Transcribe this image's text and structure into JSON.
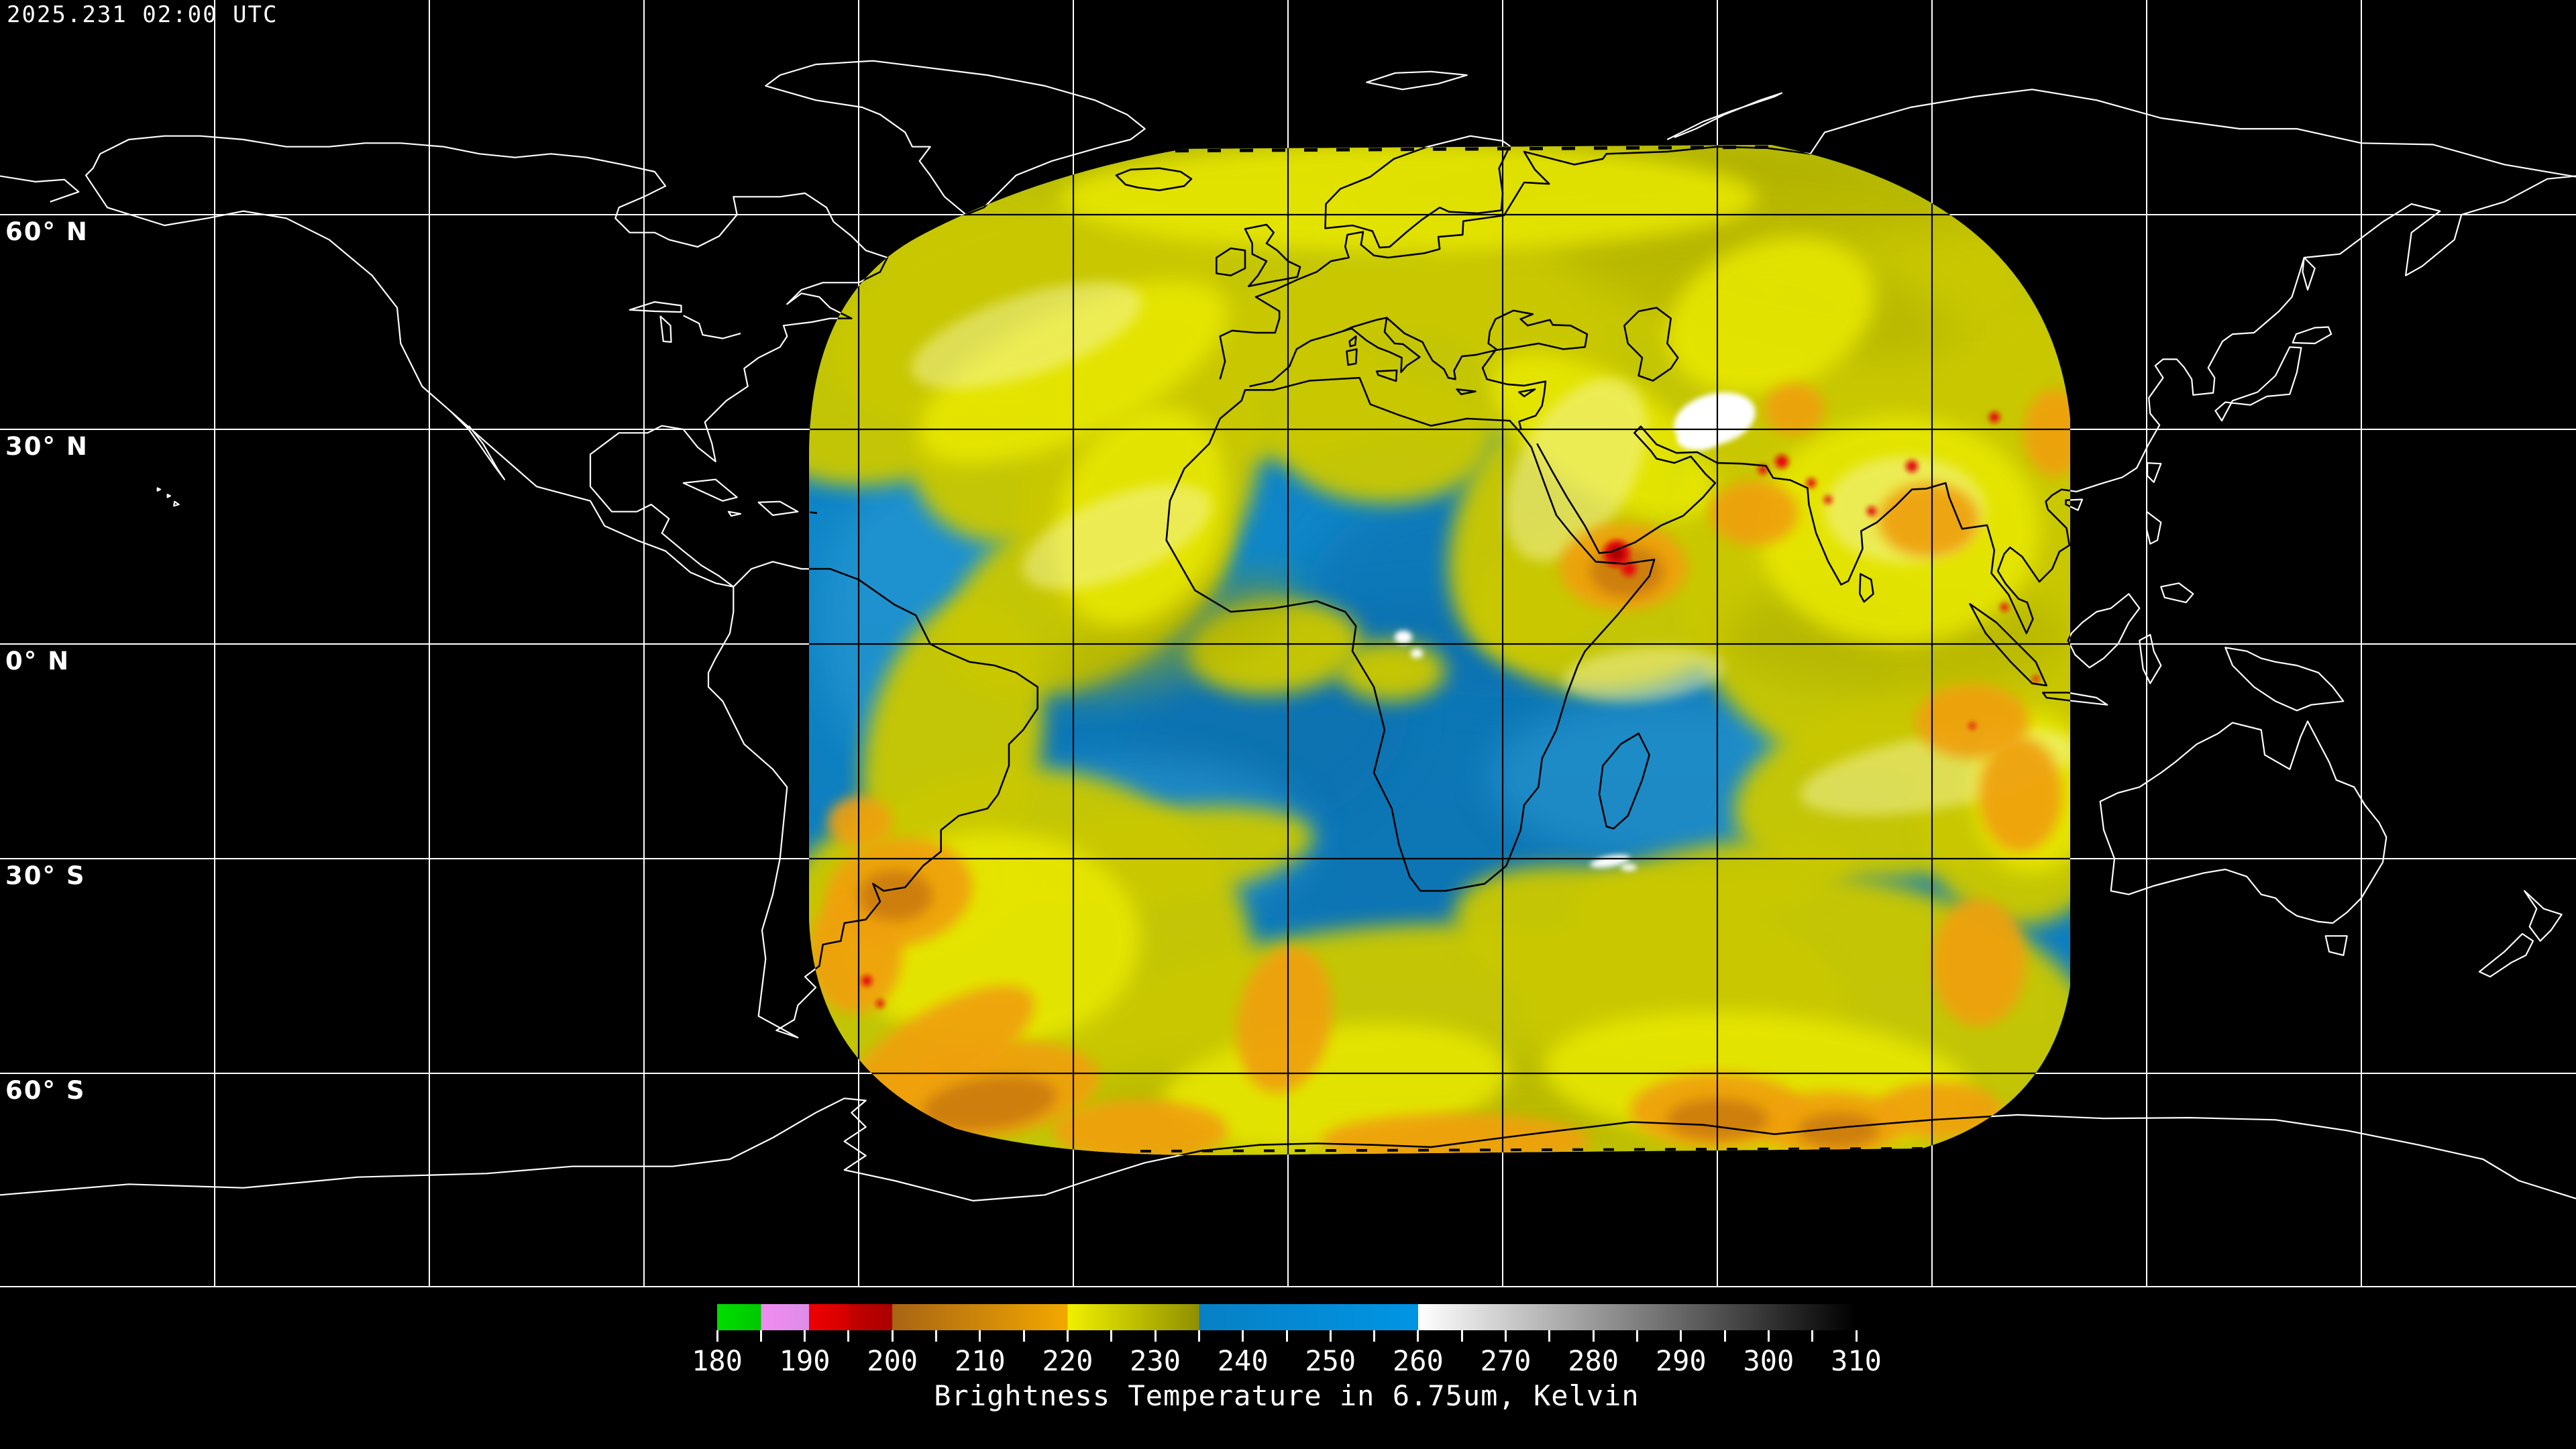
{
  "header": {
    "timestamp": "2025.231 02:00 UTC"
  },
  "map": {
    "projection": "equirectangular",
    "grid_interval_deg": 30,
    "lat_labels": [
      {
        "label": "60° N",
        "lat": 60
      },
      {
        "label": "30° N",
        "lat": 30
      },
      {
        "label": "0° N",
        "lat": 0
      },
      {
        "label": "30° S",
        "lat": -30
      },
      {
        "label": "60° S",
        "lat": -60
      }
    ],
    "colors": {
      "background": "#000000",
      "coastline_outside_swath": "#ffffff",
      "coastline_inside_swath": "#000000",
      "gridline_outside_swath": "#ffffff",
      "gridline_inside_swath": "#000000",
      "swath_ocean_blue": "#0e84c6",
      "swath_cloud_yellow": "#c9c800",
      "swath_cloud_bright_yellow": "#e9e900",
      "swath_cloud_orange": "#efa010",
      "swath_cold_red": "#e30e0e",
      "swath_warm_white": "#ffffff"
    }
  },
  "colorbar": {
    "title": "Brightness Temperature in 6.75um, Kelvin",
    "min": 180,
    "max": 310,
    "major_tick_step": 10,
    "minor_tick_step": 5,
    "major_tick_labels": [
      "180",
      "190",
      "200",
      "210",
      "220",
      "230",
      "240",
      "250",
      "260",
      "270",
      "280",
      "290",
      "300",
      "310"
    ],
    "segments": [
      {
        "from": 180,
        "to": 185,
        "color_start": "#00dd00",
        "color_end": "#00c800"
      },
      {
        "from": 185,
        "to": 190.5,
        "color_start": "#f08cf0",
        "color_end": "#dd8ce8"
      },
      {
        "from": 190.5,
        "to": 195,
        "color_start": "#ee0000",
        "color_end": "#d40000"
      },
      {
        "from": 195,
        "to": 200,
        "color_start": "#c60000",
        "color_end": "#a80000"
      },
      {
        "from": 200,
        "to": 220,
        "color_start": "#a86414",
        "color_end": "#f2a800"
      },
      {
        "from": 220,
        "to": 235,
        "color_start": "#f0f000",
        "color_end": "#8f8f00"
      },
      {
        "from": 235,
        "to": 260,
        "color_start": "#0880c4",
        "color_end": "#0095e4"
      },
      {
        "from": 260,
        "to": 310,
        "color_start": "#ffffff",
        "color_end": "#000000"
      }
    ]
  }
}
